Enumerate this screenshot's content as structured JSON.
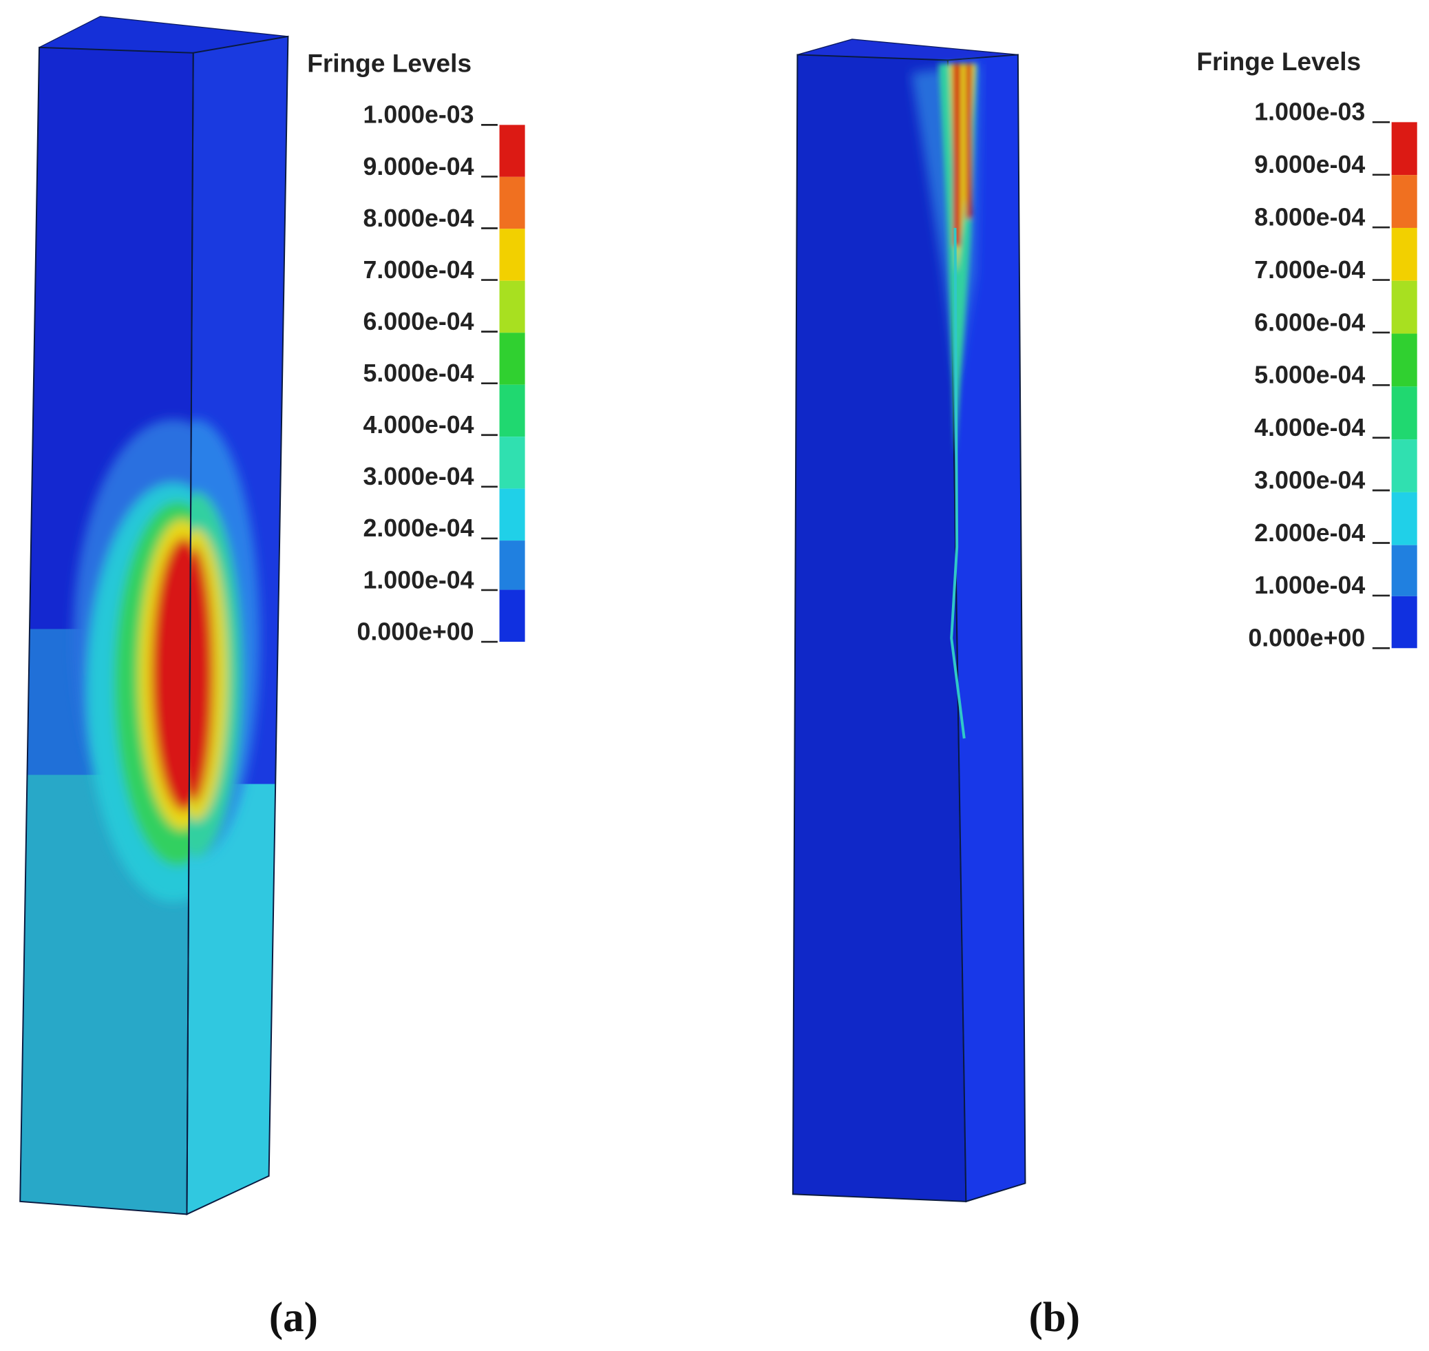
{
  "panels": [
    {
      "legend_title": "Fringe Levels",
      "levels": [
        "1.000e-03",
        "9.000e-04",
        "8.000e-04",
        "7.000e-04",
        "6.000e-04",
        "5.000e-04",
        "4.000e-04",
        "3.000e-04",
        "2.000e-04",
        "1.000e-04",
        "0.000e+00"
      ],
      "caption": "(a)"
    },
    {
      "legend_title": "Fringe Levels",
      "levels": [
        "1.000e-03",
        "9.000e-04",
        "8.000e-04",
        "7.000e-04",
        "6.000e-04",
        "5.000e-04",
        "4.000e-04",
        "3.000e-04",
        "2.000e-04",
        "1.000e-04",
        "0.000e+00"
      ],
      "caption": "(b)"
    }
  ]
}
